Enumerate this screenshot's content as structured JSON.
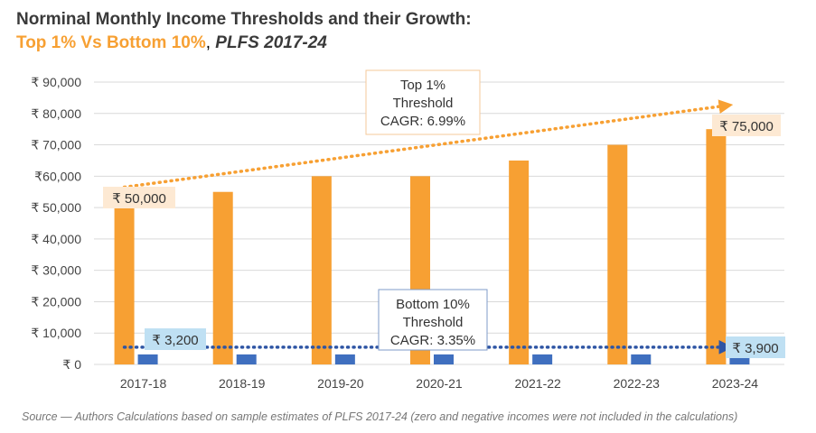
{
  "title_line1": "Norminal Monthly Income Thresholds and their Growth:",
  "title_highlight": "Top 1% Vs Bottom 10%",
  "title_sep": ", ",
  "title_sub": "PLFS 2017-24",
  "source": "Source — Authors Calculations based on sample estimates of PLFS 2017-24 (zero and negative incomes were not included in the calculations)",
  "chart_data": {
    "type": "bar",
    "categories": [
      "2017-18",
      "2018-19",
      "2019-20",
      "2020-21",
      "2021-22",
      "2022-23",
      "2023-24"
    ],
    "series": [
      {
        "name": "Top 1% Threshold",
        "color": "#f7a033",
        "values": [
          50000,
          55000,
          60000,
          60000,
          65000,
          70000,
          75000
        ]
      },
      {
        "name": "Bottom 10% Threshold",
        "color": "#3f6fbf",
        "values": [
          3200,
          3200,
          3200,
          3200,
          3200,
          3200,
          3900
        ]
      }
    ],
    "ylim": [
      0,
      90000
    ],
    "yticks": [
      0,
      10000,
      20000,
      30000,
      40000,
      50000,
      60000,
      70000,
      80000,
      90000
    ],
    "ytick_labels": [
      "₹ 0",
      "₹ 10,000",
      "₹ 20,000",
      "₹ 30,000",
      "₹ 40,000",
      "₹ 50,000",
      "₹60,000",
      "₹ 70,000",
      "₹ 80,000",
      "₹ 90,000"
    ],
    "grid": true,
    "annotations": {
      "top_start": "₹ 50,000",
      "top_end": "₹ 75,000",
      "bottom_start": "₹ 3,200",
      "bottom_end": "₹ 3,900",
      "top_cagr": [
        "Top 1%",
        "Threshold",
        "CAGR: 6.99%"
      ],
      "bottom_cagr": [
        "Bottom 10%",
        "Threshold",
        "CAGR: 3.35%"
      ]
    },
    "trend_lines": [
      {
        "name": "top-trend",
        "from": [
          0,
          56500
        ],
        "to": [
          6,
          82500
        ],
        "color": "#f7a033"
      },
      {
        "name": "bottom-trend",
        "from": [
          0,
          5500
        ],
        "to": [
          6,
          5500
        ],
        "color": "#2e55a4"
      }
    ]
  }
}
